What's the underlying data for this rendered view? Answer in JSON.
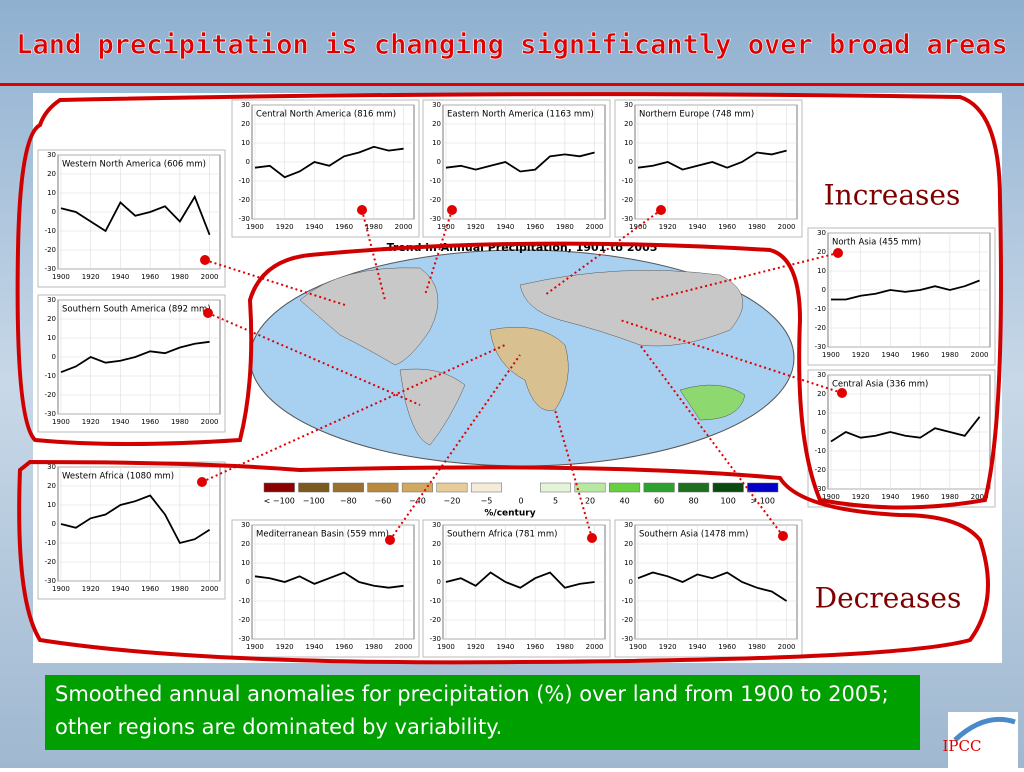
{
  "slide": {
    "title": "Land precipitation is changing significantly over broad areas",
    "increases": "Increases",
    "decreases": "Decreases",
    "caption": "Smoothed annual anomalies for precipitation (%) over land from 1900 to 2005; other regions are dominated by variability.",
    "logo": "IPCC"
  },
  "map": {
    "title": "Trend in Annual Precipitation, 1901 to 2005",
    "unit": "%/century",
    "colorbar": {
      "labels": [
        "< −100",
        "−100",
        "−80",
        "−60",
        "−40",
        "−20",
        "−5",
        "0",
        "5",
        "20",
        "40",
        "60",
        "80",
        "100",
        "> 100"
      ],
      "colors": [
        "#8b0000",
        "#7a5a1e",
        "#9a7030",
        "#b88a40",
        "#d2a860",
        "#e6cc98",
        "#f4ecd8",
        "#ffffff",
        "#e4f4d8",
        "#b8e8a0",
        "#66d040",
        "#2ea030",
        "#1e7020",
        "#0a4a10",
        "#0000c8"
      ]
    }
  },
  "chart_data": {
    "type": "line",
    "xlim": [
      1898,
      2007
    ],
    "ylim": [
      -30,
      30
    ],
    "xticks": [
      1900,
      1920,
      1940,
      1960,
      1980,
      2000
    ],
    "yticks": [
      -30,
      -20,
      -10,
      0,
      10,
      20,
      30
    ],
    "x": [
      1900,
      1910,
      1920,
      1930,
      1940,
      1950,
      1960,
      1970,
      1980,
      1990,
      2000
    ],
    "series": [
      {
        "name": "Western North America (606 mm)",
        "color": "#000000",
        "values": [
          2,
          0,
          -5,
          -10,
          5,
          -2,
          0,
          3,
          -5,
          8,
          -12
        ]
      },
      {
        "name": "Southern South America (892 mm)",
        "color": "#000000",
        "values": [
          -8,
          -5,
          0,
          -3,
          -2,
          0,
          3,
          2,
          5,
          7,
          8
        ]
      },
      {
        "name": "Central North America (816 mm)",
        "color": "#000000",
        "values": [
          -3,
          -2,
          -8,
          -5,
          0,
          -2,
          3,
          5,
          8,
          6,
          7
        ]
      },
      {
        "name": "Eastern North America (1163 mm)",
        "color": "#000000",
        "values": [
          -3,
          -2,
          -4,
          -2,
          0,
          -5,
          -4,
          3,
          4,
          3,
          5
        ]
      },
      {
        "name": "Northern Europe (748 mm)",
        "color": "#000000",
        "values": [
          -3,
          -2,
          0,
          -4,
          -2,
          0,
          -3,
          0,
          5,
          4,
          6
        ]
      },
      {
        "name": "North Asia (455 mm)",
        "color": "#000000",
        "values": [
          -5,
          -5,
          -3,
          -2,
          0,
          -1,
          0,
          2,
          0,
          2,
          5
        ]
      },
      {
        "name": "Central Asia (336 mm)",
        "color": "#000000",
        "values": [
          -5,
          0,
          -3,
          -2,
          0,
          -2,
          -3,
          2,
          0,
          -2,
          8
        ]
      },
      {
        "name": "Western Africa (1080 mm)",
        "color": "#000000",
        "values": [
          0,
          -2,
          3,
          5,
          10,
          12,
          15,
          5,
          -10,
          -8,
          -3
        ]
      },
      {
        "name": "Mediterranean Basin (559 mm)",
        "color": "#000000",
        "values": [
          3,
          2,
          0,
          3,
          -1,
          2,
          5,
          0,
          -2,
          -3,
          -2
        ]
      },
      {
        "name": "Southern Africa (781 mm)",
        "color": "#000000",
        "values": [
          0,
          2,
          -2,
          5,
          0,
          -3,
          2,
          5,
          -3,
          -1,
          0
        ]
      },
      {
        "name": "Southern Asia (1478 mm)",
        "color": "#000000",
        "values": [
          2,
          5,
          3,
          0,
          4,
          2,
          5,
          0,
          -3,
          -5,
          -10
        ]
      }
    ]
  }
}
